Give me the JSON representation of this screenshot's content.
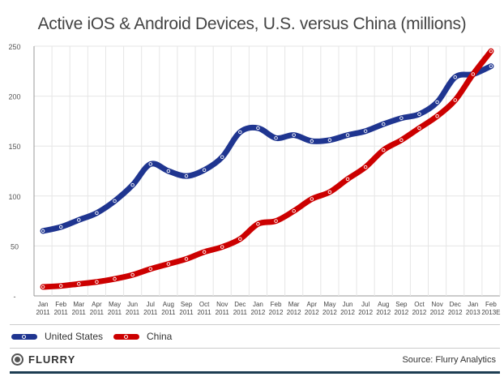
{
  "chart_data": {
    "type": "line",
    "title": "Active iOS & Android Devices, U.S. versus China (millions)",
    "xlabel": "",
    "ylabel": "",
    "ylim": [
      0,
      250
    ],
    "yticks": [
      "-",
      "50",
      "100",
      "150",
      "200",
      "250"
    ],
    "grid": true,
    "legend_position": "bottom-left",
    "categories": [
      [
        "Jan",
        "2011"
      ],
      [
        "Feb",
        "2011"
      ],
      [
        "Mar",
        "2011"
      ],
      [
        "Apr",
        "2011"
      ],
      [
        "May",
        "2011"
      ],
      [
        "Jun",
        "2011"
      ],
      [
        "Jul",
        "2011"
      ],
      [
        "Aug",
        "2011"
      ],
      [
        "Sep",
        "2011"
      ],
      [
        "Oct",
        "2011"
      ],
      [
        "Nov",
        "2011"
      ],
      [
        "Dec",
        "2011"
      ],
      [
        "Jan",
        "2012"
      ],
      [
        "Feb",
        "2012"
      ],
      [
        "Mar",
        "2012"
      ],
      [
        "Apr",
        "2012"
      ],
      [
        "May",
        "2012"
      ],
      [
        "Jun",
        "2012"
      ],
      [
        "Jul",
        "2012"
      ],
      [
        "Aug",
        "2012"
      ],
      [
        "Sep",
        "2012"
      ],
      [
        "Oct",
        "2012"
      ],
      [
        "Nov",
        "2012"
      ],
      [
        "Dec",
        "2012"
      ],
      [
        "Jan",
        "2013"
      ],
      [
        "Feb",
        "2013E"
      ]
    ],
    "series": [
      {
        "name": "United States",
        "color": "#1f3590",
        "values": [
          65,
          69,
          76,
          83,
          95,
          111,
          132,
          125,
          120,
          126,
          139,
          164,
          168,
          158,
          161,
          155,
          156,
          161,
          165,
          172,
          178,
          182,
          194,
          219,
          222,
          230
        ]
      },
      {
        "name": "China",
        "color": "#cc0000",
        "values": [
          9,
          10,
          12,
          14,
          17,
          21,
          27,
          32,
          37,
          44,
          49,
          57,
          72,
          75,
          85,
          97,
          104,
          117,
          129,
          146,
          156,
          168,
          180,
          196,
          222,
          245
        ]
      }
    ]
  },
  "footer": {
    "logo_text": "FLURRY",
    "source": "Source: Flurry Analytics"
  }
}
